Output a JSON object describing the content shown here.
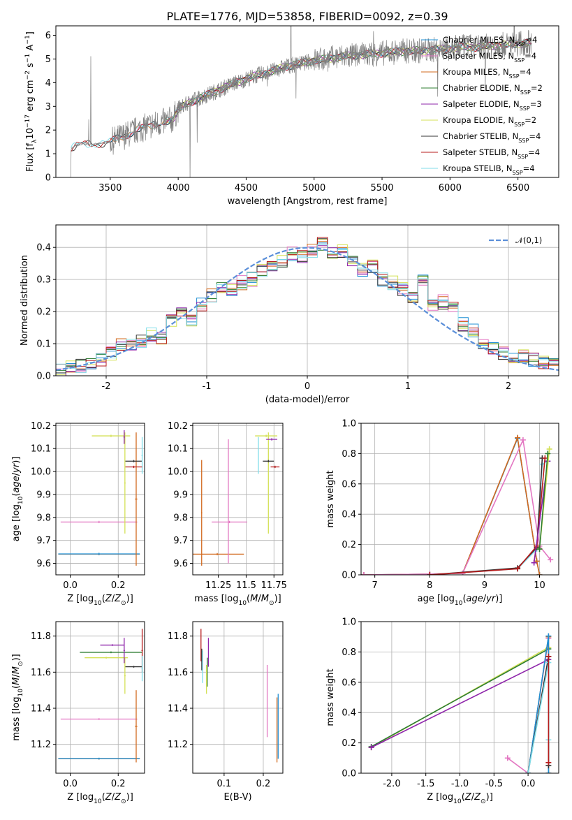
{
  "figure": {
    "title": "PLATE=1776, MJD=53858, FIBERID=0092, z=0.39"
  },
  "colors": {
    "Chabrier MILES": "#1f8fd4",
    "Salpeter MILES": "#e377c2",
    "Kroupa MILES": "#d2691e",
    "Chabrier ELODIE": "#2e7d32",
    "Salpeter ELODIE": "#8e24aa",
    "Kroupa ELODIE": "#d4e157",
    "Chabrier STELIB": "#333333",
    "Salpeter STELIB": "#b71c1c",
    "Kroupa STELIB": "#80deea",
    "data": "#808080",
    "normal": "#5b8fd9"
  },
  "chart_data": [
    {
      "id": "spectrum",
      "type": "line",
      "xlabel": "wavelength [Angstrom, rest frame]",
      "ylabel": "Flux [f_λ 10^-17 erg cm^-2 s^-1 A^-1]",
      "xlim": [
        3100,
        6800
      ],
      "ylim": [
        0,
        6.4
      ],
      "xticks": [
        3500,
        4000,
        4500,
        5000,
        5500,
        6000,
        6500
      ],
      "yticks": [
        0,
        1,
        2,
        3,
        4,
        5,
        6
      ],
      "grid": false,
      "legend_position": "top-right",
      "series": [
        {
          "name": "Chabrier MILES, N_SSP=4",
          "label": "Chabrier MILES, N",
          "sub": "SSP",
          "tail": "=4"
        },
        {
          "name": "Salpeter MILES, N_SSP=4",
          "label": "Salpeter MILES, N",
          "sub": "SSP",
          "tail": "=4"
        },
        {
          "name": "Kroupa MILES, N_SSP=4",
          "label": "Kroupa MILES, N",
          "sub": "SSP",
          "tail": "=4"
        },
        {
          "name": "Chabrier ELODIE, N_SSP=2",
          "label": "Chabrier ELODIE, N",
          "sub": "SSP",
          "tail": "=2"
        },
        {
          "name": "Salpeter ELODIE, N_SSP=3",
          "label": "Salpeter ELODIE, N",
          "sub": "SSP",
          "tail": "=3"
        },
        {
          "name": "Kroupa ELODIE, N_SSP=2",
          "label": "Kroupa ELODIE, N",
          "sub": "SSP",
          "tail": "=2"
        },
        {
          "name": "Chabrier STELIB, N_SSP=4",
          "label": "Chabrier STELIB, N",
          "sub": "SSP",
          "tail": "=4"
        },
        {
          "name": "Salpeter STELIB, N_SSP=4",
          "label": "Salpeter STELIB, N",
          "sub": "SSP",
          "tail": "=4"
        },
        {
          "name": "Kroupa STELIB, N_SSP=4",
          "label": "Kroupa STELIB, N",
          "sub": "SSP",
          "tail": "=4"
        }
      ],
      "continuum": {
        "x": [
          3210,
          3250,
          3300,
          3400,
          3500,
          3600,
          3700,
          3800,
          3900,
          3960,
          4000,
          4100,
          4200,
          4300,
          4400,
          4500,
          4600,
          4700,
          4800,
          4900,
          5000,
          5100,
          5200,
          5300,
          5400,
          5500,
          5600,
          5700,
          5800,
          5900,
          6000,
          6100,
          6200,
          6300,
          6400,
          6500,
          6600
        ],
        "y": [
          1.2,
          1.35,
          1.4,
          1.4,
          1.5,
          1.75,
          2.0,
          2.2,
          2.35,
          2.45,
          2.9,
          3.2,
          3.45,
          3.7,
          3.95,
          4.15,
          4.35,
          4.5,
          4.7,
          4.8,
          4.95,
          5.0,
          5.1,
          5.15,
          5.2,
          5.25,
          5.3,
          5.35,
          5.35,
          5.4,
          5.45,
          5.5,
          5.5,
          5.55,
          5.6,
          5.65,
          5.7
        ]
      }
    },
    {
      "id": "residuals",
      "type": "line",
      "xlabel": "(data-model)/error",
      "ylabel": "Normed distribution",
      "xlim": [
        -2.5,
        2.5
      ],
      "ylim": [
        0,
        0.47
      ],
      "xticks": [
        -2,
        -1,
        0,
        1,
        2
      ],
      "yticks": [
        0.0,
        0.1,
        0.2,
        0.3,
        0.4
      ],
      "grid": true,
      "legend_position": "top-right",
      "legend_label": "𝒩(0,1)",
      "bin_width": 0.1,
      "histogram_centers": [
        -2.45,
        -2.35,
        -2.25,
        -2.15,
        -2.05,
        -1.95,
        -1.85,
        -1.75,
        -1.65,
        -1.55,
        -1.45,
        -1.35,
        -1.25,
        -1.15,
        -1.05,
        -0.95,
        -0.85,
        -0.75,
        -0.65,
        -0.55,
        -0.45,
        -0.35,
        -0.25,
        -0.15,
        -0.05,
        0.05,
        0.15,
        0.25,
        0.35,
        0.45,
        0.55,
        0.65,
        0.75,
        0.85,
        0.95,
        1.05,
        1.15,
        1.25,
        1.35,
        1.45,
        1.55,
        1.65,
        1.75,
        1.85,
        1.95,
        2.05,
        2.15,
        2.25,
        2.35,
        2.45
      ],
      "histogram_values": [
        0.02,
        0.025,
        0.03,
        0.035,
        0.05,
        0.07,
        0.1,
        0.1,
        0.11,
        0.13,
        0.12,
        0.17,
        0.19,
        0.17,
        0.22,
        0.25,
        0.28,
        0.27,
        0.29,
        0.3,
        0.33,
        0.34,
        0.36,
        0.38,
        0.37,
        0.39,
        0.41,
        0.38,
        0.39,
        0.36,
        0.33,
        0.34,
        0.3,
        0.29,
        0.27,
        0.24,
        0.3,
        0.22,
        0.23,
        0.21,
        0.16,
        0.14,
        0.1,
        0.09,
        0.07,
        0.05,
        0.06,
        0.05,
        0.04,
        0.05
      ],
      "normal_curve": {
        "mean": 0,
        "sigma": 1
      }
    },
    {
      "id": "z-age",
      "type": "scatter",
      "xlabel": "Z [log10(Z/Z⊙)]",
      "ylabel": "age [log10(age/yr)]",
      "xlim": [
        -0.06,
        0.31
      ],
      "ylim": [
        9.55,
        10.21
      ],
      "xticks": [
        0.0,
        0.2
      ],
      "yticks": [
        9.6,
        9.7,
        9.8,
        9.9,
        10.0,
        10.1,
        10.2
      ],
      "grid": true,
      "errorbars": [
        {
          "series": "Kroupa MILES",
          "x": 0.12,
          "xerr": 0.17,
          "y": 9.64,
          "yerr": 0.005
        },
        {
          "series": "Chabrier MILES",
          "x": 0.12,
          "xerr": 0.17,
          "y": 9.641,
          "yerr": 0.005
        },
        {
          "series": "Salpeter MILES",
          "x": 0.12,
          "xerr": 0.16,
          "y": 9.78,
          "yerr": 0.005
        },
        {
          "series": "Kroupa MILES",
          "x": 0.275,
          "xerr": 0.005,
          "y": 9.88,
          "yerr": 0.29
        },
        {
          "series": "Kroupa ELODIE",
          "x": 0.17,
          "xerr": 0.08,
          "y": 10.155,
          "yerr": 0.005
        },
        {
          "series": "Kroupa ELODIE",
          "x": 0.228,
          "xerr": 0.003,
          "y": 9.95,
          "yerr": 0.22
        },
        {
          "series": "Salpeter ELODIE",
          "x": 0.225,
          "xerr": 0.003,
          "y": 10.15,
          "yerr": 0.03
        },
        {
          "series": "Chabrier STELIB",
          "x": 0.265,
          "xerr": 0.035,
          "y": 10.045,
          "yerr": 0.005
        },
        {
          "series": "Kroupa STELIB",
          "x": 0.3,
          "xerr": 0.003,
          "y": 10.07,
          "yerr": 0.08
        },
        {
          "series": "Salpeter STELIB",
          "x": 0.265,
          "xerr": 0.035,
          "y": 10.02,
          "yerr": 0.005
        }
      ]
    },
    {
      "id": "mass-age",
      "type": "scatter",
      "xlabel": "mass [log10(M/M⊙)]",
      "ylabel": "",
      "xlim": [
        11.02,
        11.83
      ],
      "ylim": [
        9.55,
        10.21
      ],
      "xticks": [
        11.25,
        11.5,
        11.75
      ],
      "yticks": [
        9.6,
        9.7,
        9.8,
        9.9,
        10.0,
        10.1,
        10.2
      ],
      "grid": true,
      "errorbars": [
        {
          "series": "Kroupa MILES",
          "x": 11.24,
          "xerr": 0.24,
          "y": 9.64,
          "yerr": 0.005
        },
        {
          "series": "Kroupa MILES",
          "x": 11.1,
          "xerr": 0.005,
          "y": 9.82,
          "yerr": 0.23
        },
        {
          "series": "Salpeter MILES",
          "x": 11.35,
          "xerr": 0.16,
          "y": 9.78,
          "yerr": 0.005
        },
        {
          "series": "Salpeter MILES",
          "x": 11.34,
          "xerr": 0.003,
          "y": 9.87,
          "yerr": 0.27
        },
        {
          "series": "Kroupa ELODIE",
          "x": 11.68,
          "xerr": 0.1,
          "y": 10.155,
          "yerr": 0.005
        },
        {
          "series": "Kroupa ELODIE",
          "x": 11.7,
          "xerr": 0.003,
          "y": 9.95,
          "yerr": 0.22
        },
        {
          "series": "Salpeter ELODIE",
          "x": 11.73,
          "xerr": 0.05,
          "y": 10.14,
          "yerr": 0.005
        },
        {
          "series": "Chabrier STELIB",
          "x": 11.7,
          "xerr": 0.05,
          "y": 10.045,
          "yerr": 0.005
        },
        {
          "series": "Salpeter STELIB",
          "x": 11.76,
          "xerr": 0.04,
          "y": 10.02,
          "yerr": 0.005
        },
        {
          "series": "Kroupa STELIB",
          "x": 11.61,
          "xerr": 0.003,
          "y": 10.07,
          "yerr": 0.08
        }
      ]
    },
    {
      "id": "age-massweight",
      "type": "line",
      "xlabel": "age [log10(age/yr)]",
      "ylabel": "mass weight",
      "xlim": [
        6.75,
        10.35
      ],
      "ylim": [
        0,
        1.0
      ],
      "xticks": [
        7,
        8,
        9,
        10
      ],
      "yticks": [
        0.0,
        0.2,
        0.4,
        0.6,
        0.8,
        1.0
      ],
      "grid": true,
      "series": [
        {
          "series": "Chabrier MILES",
          "x": [
            6.8,
            8.0,
            8.6,
            9.6,
            9.95,
            10.0
          ],
          "y": [
            0.0,
            0.005,
            0.01,
            0.9,
            0.09,
            0.0
          ]
        },
        {
          "series": "Kroupa MILES",
          "x": [
            6.8,
            8.0,
            8.6,
            9.6,
            9.95,
            10.0
          ],
          "y": [
            0.0,
            0.005,
            0.01,
            0.905,
            0.09,
            0.0
          ]
        },
        {
          "series": "Salpeter MILES",
          "x": [
            6.8,
            8.0,
            8.6,
            9.7,
            10.0,
            10.2
          ],
          "y": [
            0.0,
            0.005,
            0.01,
            0.89,
            0.19,
            0.1
          ]
        },
        {
          "series": "Kroupa STELIB",
          "x": [
            8.0,
            9.6,
            9.95,
            10.05,
            10.15
          ],
          "y": [
            0.0,
            0.04,
            0.17,
            0.73,
            0.75
          ]
        },
        {
          "series": "Chabrier STELIB",
          "x": [
            8.0,
            9.6,
            9.95,
            10.05
          ],
          "y": [
            0.0,
            0.045,
            0.18,
            0.77
          ]
        },
        {
          "series": "Salpeter STELIB",
          "x": [
            8.0,
            9.6,
            9.95,
            10.1
          ],
          "y": [
            0.0,
            0.04,
            0.19,
            0.77
          ]
        },
        {
          "series": "Salpeter ELODIE",
          "x": [
            9.9,
            10.15
          ],
          "y": [
            0.08,
            0.75
          ]
        },
        {
          "series": "Kroupa ELODIE",
          "x": [
            10.0,
            10.18
          ],
          "y": [
            0.17,
            0.83
          ]
        },
        {
          "series": "Chabrier ELODIE",
          "x": [
            10.0,
            10.15
          ],
          "y": [
            0.17,
            0.8
          ]
        }
      ]
    },
    {
      "id": "z-mass",
      "type": "scatter",
      "xlabel": "Z [log10(Z/Z⊙)]",
      "ylabel": "mass [log10(M/M⊙)]",
      "xlim": [
        -0.06,
        0.31
      ],
      "ylim": [
        11.04,
        11.88
      ],
      "xticks": [
        0.0,
        0.2
      ],
      "yticks": [
        11.2,
        11.4,
        11.6,
        11.8
      ],
      "grid": true,
      "errorbars": [
        {
          "series": "Kroupa MILES",
          "x": 0.12,
          "xerr": 0.17,
          "y": 11.12,
          "yerr": 0.005
        },
        {
          "series": "Chabrier MILES",
          "x": 0.12,
          "xerr": 0.17,
          "y": 11.121,
          "yerr": 0.005
        },
        {
          "series": "Salpeter MILES",
          "x": 0.12,
          "xerr": 0.16,
          "y": 11.34,
          "yerr": 0.005
        },
        {
          "series": "Kroupa MILES",
          "x": 0.275,
          "xerr": 0.005,
          "y": 11.3,
          "yerr": 0.2
        },
        {
          "series": "Chabrier ELODIE",
          "x": 0.17,
          "xerr": 0.13,
          "y": 11.71,
          "yerr": 0.005
        },
        {
          "series": "Kroupa ELODIE",
          "x": 0.15,
          "xerr": 0.09,
          "y": 11.68,
          "yerr": 0.005
        },
        {
          "series": "Kroupa ELODIE",
          "x": 0.228,
          "xerr": 0.003,
          "y": 11.58,
          "yerr": 0.1
        },
        {
          "series": "Salpeter ELODIE",
          "x": 0.175,
          "xerr": 0.05,
          "y": 11.75,
          "yerr": 0.005
        },
        {
          "series": "Salpeter ELODIE",
          "x": 0.225,
          "xerr": 0.003,
          "y": 11.72,
          "yerr": 0.07
        },
        {
          "series": "Chabrier STELIB",
          "x": 0.265,
          "xerr": 0.035,
          "y": 11.63,
          "yerr": 0.005
        },
        {
          "series": "Salpeter STELIB",
          "x": 0.3,
          "xerr": 0.003,
          "y": 11.72,
          "yerr": 0.12
        },
        {
          "series": "Kroupa STELIB",
          "x": 0.3,
          "xerr": 0.003,
          "y": 11.62,
          "yerr": 0.07
        }
      ]
    },
    {
      "id": "ebv-mass",
      "type": "scatter",
      "xlabel": "E(B-V)",
      "ylabel": "",
      "xlim": [
        0.02,
        0.25
      ],
      "ylim": [
        11.04,
        11.88
      ],
      "xticks": [
        0.1,
        0.2
      ],
      "yticks": [
        11.2,
        11.4,
        11.6,
        11.8
      ],
      "grid": true,
      "errorbars": [
        {
          "series": "Salpeter STELIB",
          "x": 0.041,
          "yerr": 0.09,
          "y": 11.75
        },
        {
          "series": "Chabrier STELIB",
          "x": 0.043,
          "yerr": 0.06,
          "y": 11.67
        },
        {
          "series": "Kroupa STELIB",
          "x": 0.045,
          "yerr": 0.09,
          "y": 11.63
        },
        {
          "series": "Salpeter ELODIE",
          "x": 0.06,
          "yerr": 0.08,
          "y": 11.71
        },
        {
          "series": "Chabrier ELODIE",
          "x": 0.057,
          "yerr": 0.08,
          "y": 11.6
        },
        {
          "series": "Kroupa ELODIE",
          "x": 0.055,
          "yerr": 0.08,
          "y": 11.56
        },
        {
          "series": "Salpeter MILES",
          "x": 0.21,
          "yerr": 0.2,
          "y": 11.44
        },
        {
          "series": "Kroupa MILES",
          "x": 0.235,
          "yerr": 0.18,
          "y": 11.28
        },
        {
          "series": "Chabrier MILES",
          "x": 0.238,
          "yerr": 0.18,
          "y": 11.3
        }
      ]
    },
    {
      "id": "z-massweight",
      "type": "line",
      "xlabel": "Z [log10(Z/Z⊙)]",
      "ylabel": "mass weight",
      "xlim": [
        -2.45,
        0.45
      ],
      "ylim": [
        0,
        1.0
      ],
      "xticks": [
        -2.0,
        -1.5,
        -1.0,
        -0.5,
        0.0
      ],
      "yticks": [
        0.0,
        0.2,
        0.4,
        0.6,
        0.8,
        1.0
      ],
      "grid": true,
      "series": [
        {
          "series": "Kroupa ELODIE",
          "x": [
            -2.3,
            0.3
          ],
          "y": [
            0.17,
            0.83
          ]
        },
        {
          "series": "Chabrier ELODIE",
          "x": [
            -2.3,
            0.3
          ],
          "y": [
            0.175,
            0.82
          ]
        },
        {
          "series": "Salpeter ELODIE",
          "x": [
            -2.3,
            0.3
          ],
          "y": [
            0.17,
            0.75
          ]
        },
        {
          "series": "Salpeter MILES",
          "x": [
            -0.3,
            0.0,
            0.3
          ],
          "y": [
            0.1,
            0.0,
            0.89
          ]
        },
        {
          "series": "Kroupa MILES",
          "x": [
            0.0,
            0.3,
            0.3
          ],
          "y": [
            0.0,
            0.9,
            0.0
          ]
        },
        {
          "series": "Chabrier MILES",
          "x": [
            0.0,
            0.3,
            0.3
          ],
          "y": [
            0.0,
            0.905,
            0.0
          ]
        },
        {
          "series": "Chabrier STELIB",
          "x": [
            0.0,
            0.3,
            0.3
          ],
          "y": [
            0.0,
            0.77,
            0.05
          ]
        },
        {
          "series": "Kroupa STELIB",
          "x": [
            0.0,
            0.3,
            0.3
          ],
          "y": [
            0.0,
            0.73,
            0.22
          ]
        },
        {
          "series": "Salpeter STELIB",
          "x": [
            0.3,
            0.3
          ],
          "y": [
            0.77,
            0.07
          ]
        }
      ]
    }
  ]
}
